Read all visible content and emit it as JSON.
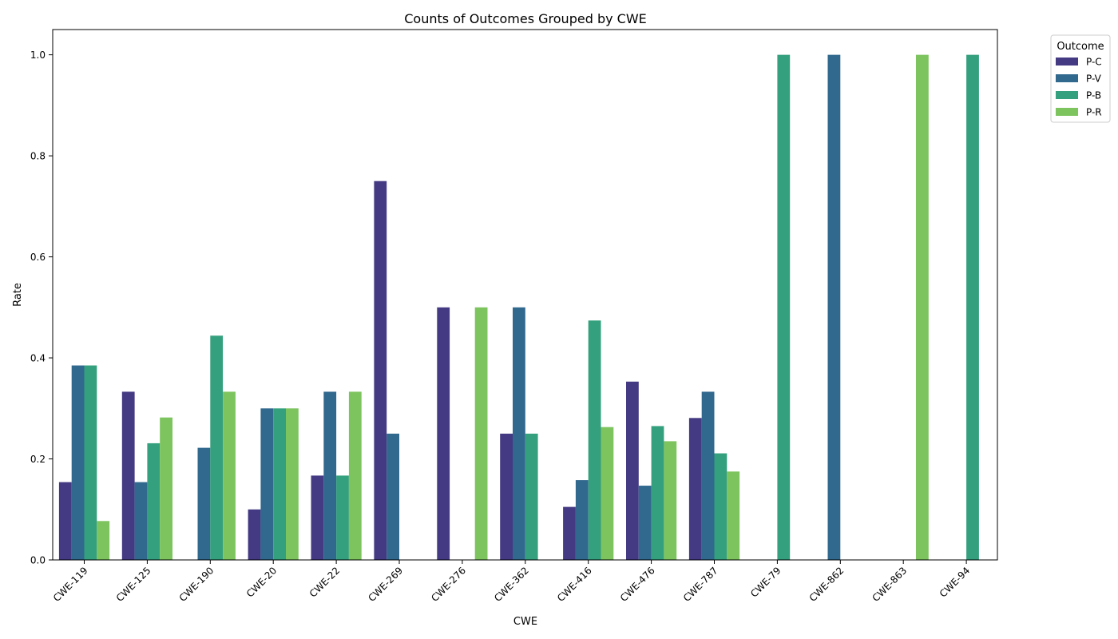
{
  "chart_data": {
    "type": "bar",
    "title": "Counts of Outcomes Grouped by CWE",
    "xlabel": "CWE",
    "ylabel": "Rate",
    "ylim": [
      0,
      1.05
    ],
    "yticks": [
      "0.0",
      "0.2",
      "0.4",
      "0.6",
      "0.8",
      "1.0"
    ],
    "grid": false,
    "legend_title": "Outcome",
    "legend_position": "outside-right-top",
    "categories": [
      "CWE-119",
      "CWE-125",
      "CWE-190",
      "CWE-20",
      "CWE-22",
      "CWE-269",
      "CWE-276",
      "CWE-362",
      "CWE-416",
      "CWE-476",
      "CWE-787",
      "CWE-79",
      "CWE-862",
      "CWE-863",
      "CWE-94"
    ],
    "series": [
      {
        "name": "P-C",
        "color": "#443a83",
        "values": [
          0.154,
          0.333,
          0,
          0.1,
          0.167,
          0.75,
          0.5,
          0.25,
          0.105,
          0.353,
          0.281,
          0,
          0,
          0,
          0
        ]
      },
      {
        "name": "P-V",
        "color": "#31688e",
        "values": [
          0.385,
          0.154,
          0.222,
          0.3,
          0.333,
          0.25,
          0,
          0.5,
          0.158,
          0.147,
          0.333,
          0,
          1.0,
          0,
          0
        ]
      },
      {
        "name": "P-B",
        "color": "#35a07e",
        "values": [
          0.385,
          0.231,
          0.444,
          0.3,
          0.167,
          0,
          0,
          0.25,
          0.474,
          0.265,
          0.211,
          1.0,
          0,
          0,
          1.0
        ]
      },
      {
        "name": "P-R",
        "color": "#7dc45f",
        "values": [
          0.077,
          0.282,
          0.333,
          0.3,
          0.333,
          0,
          0.5,
          0,
          0.263,
          0.235,
          0.175,
          0,
          0,
          1.0,
          0
        ]
      }
    ]
  }
}
